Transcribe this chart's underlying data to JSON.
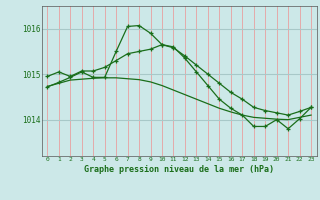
{
  "title": "Graphe pression niveau de la mer (hPa)",
  "background_color": "#cce8e8",
  "grid_color_v": "#e8a0a0",
  "grid_color_h": "#a8c8c8",
  "line_color": "#1a6e1a",
  "xlim": [
    -0.5,
    23.5
  ],
  "ylim": [
    1013.2,
    1016.5
  ],
  "yticks": [
    1014,
    1015,
    1016
  ],
  "ytick_labels": [
    "1014",
    "1015",
    "1016"
  ],
  "xticks": [
    0,
    1,
    2,
    3,
    4,
    5,
    6,
    7,
    8,
    9,
    10,
    11,
    12,
    13,
    14,
    15,
    16,
    17,
    18,
    19,
    20,
    21,
    22,
    23
  ],
  "series1_x": [
    0,
    1,
    2,
    3,
    4,
    5,
    6,
    7,
    8,
    9,
    10,
    11,
    12,
    13,
    14,
    15,
    16,
    17,
    18,
    19,
    20,
    21,
    22,
    23
  ],
  "series1_y": [
    1014.72,
    1014.82,
    1014.93,
    1015.05,
    1014.93,
    1014.93,
    1015.5,
    1016.05,
    1016.07,
    1015.9,
    1015.65,
    1015.6,
    1015.35,
    1015.05,
    1014.75,
    1014.45,
    1014.25,
    1014.1,
    1013.85,
    1013.85,
    1014.0,
    1013.8,
    1014.02,
    1014.27
  ],
  "series2_x": [
    0,
    1,
    2,
    3,
    4,
    5,
    6,
    7,
    8,
    9,
    10,
    11,
    12,
    13,
    14,
    15,
    16,
    17,
    18,
    19,
    20,
    21,
    22,
    23
  ],
  "series2_y": [
    1014.95,
    1015.05,
    1014.95,
    1015.07,
    1015.07,
    1015.15,
    1015.3,
    1015.45,
    1015.5,
    1015.55,
    1015.65,
    1015.58,
    1015.4,
    1015.2,
    1015.0,
    1014.8,
    1014.6,
    1014.45,
    1014.27,
    1014.2,
    1014.15,
    1014.1,
    1014.18,
    1014.27
  ],
  "series3_x": [
    0,
    1,
    2,
    3,
    4,
    5,
    6,
    7,
    8,
    9,
    10,
    11,
    12,
    13,
    14,
    15,
    16,
    17,
    18,
    19,
    20,
    21,
    22,
    23
  ],
  "series3_y": [
    1014.73,
    1014.8,
    1014.87,
    1014.89,
    1014.91,
    1014.92,
    1014.92,
    1014.9,
    1014.88,
    1014.83,
    1014.75,
    1014.65,
    1014.55,
    1014.45,
    1014.35,
    1014.25,
    1014.17,
    1014.1,
    1014.05,
    1014.03,
    1014.01,
    1014.0,
    1014.05,
    1014.1
  ]
}
